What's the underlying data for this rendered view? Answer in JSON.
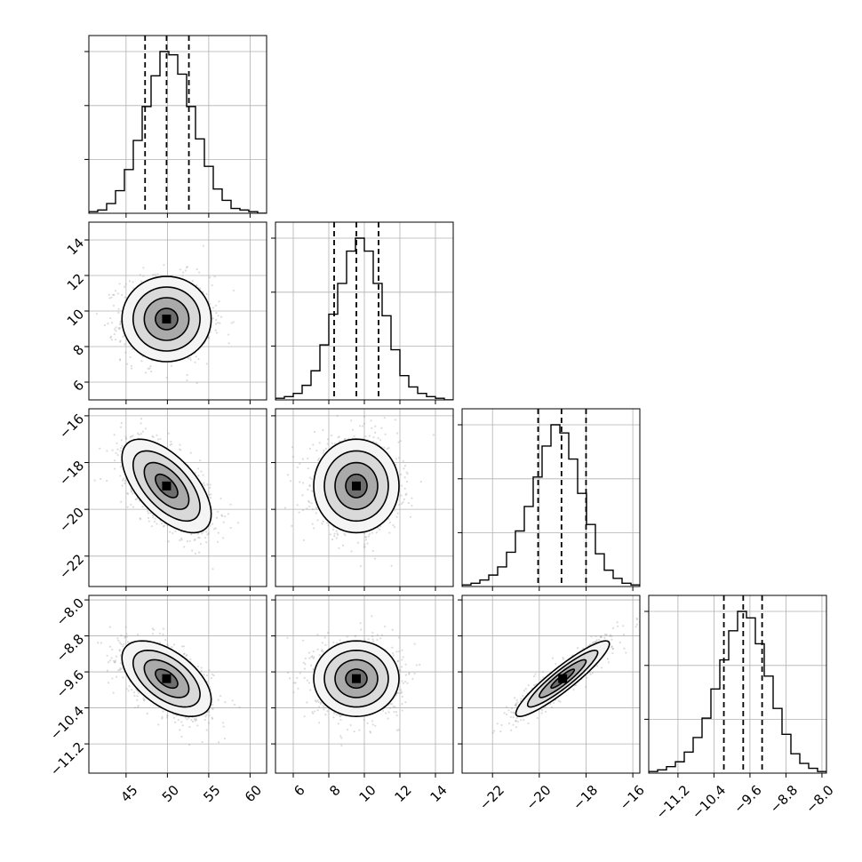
{
  "chart_data": {
    "type": "corner",
    "grid": true,
    "parameters": [
      {
        "range": [
          40.5,
          62
        ],
        "ticks": [
          45,
          50,
          55,
          60
        ],
        "tick_labels": [
          "45",
          "50",
          "55",
          "60"
        ],
        "mean": 49.9,
        "std": 2.7,
        "quantiles": [
          47.3,
          49.9,
          52.6
        ]
      },
      {
        "range": [
          5,
          15
        ],
        "ticks": [
          6,
          8,
          10,
          12,
          14
        ],
        "tick_labels": [
          "6",
          "8",
          "10",
          "12",
          "14"
        ],
        "mean": 9.55,
        "std": 1.2,
        "quantiles": [
          8.3,
          9.55,
          10.8
        ]
      },
      {
        "range": [
          -23.3,
          -15.7
        ],
        "ticks": [
          -22,
          -20,
          -18,
          -16
        ],
        "tick_labels": [
          "−22",
          "−20",
          "−18",
          "−16"
        ],
        "mean": -19.0,
        "std": 1.0,
        "quantiles": [
          -20.05,
          -19.05,
          -18.0
        ]
      },
      {
        "range": [
          -11.85,
          -7.9
        ],
        "ticks": [
          -11.2,
          -10.4,
          -9.6,
          -8.8,
          -8.0
        ],
        "tick_labels": [
          "−11.2",
          "−10.4",
          "−9.6",
          "−8.8",
          "−8.0"
        ],
        "mean": -9.75,
        "std": 0.42,
        "quantiles": [
          -10.18,
          -9.75,
          -9.33
        ]
      }
    ],
    "diagonal_histograms": [
      {
        "bin_edges": [
          40.5,
          41.575,
          42.65,
          43.725,
          44.8,
          45.875,
          46.95,
          48.025,
          49.1,
          50.175,
          51.25,
          52.325,
          53.4,
          54.475,
          55.55,
          56.625,
          57.7,
          58.775,
          59.85,
          60.925,
          62
        ],
        "counts": [
          1,
          2,
          6,
          14,
          27,
          45,
          66,
          85,
          100,
          98,
          86,
          66,
          46,
          29,
          15,
          8,
          3,
          2,
          1,
          0
        ]
      },
      {
        "bin_edges": [
          5,
          5.5,
          6,
          6.5,
          7,
          7.5,
          8,
          8.5,
          9,
          9.5,
          10,
          10.5,
          11,
          11.5,
          12,
          12.5,
          13,
          13.5,
          14,
          14.5,
          15
        ],
        "counts": [
          1,
          2,
          4,
          9,
          18,
          34,
          53,
          72,
          92,
          100,
          92,
          72,
          52,
          31,
          15,
          8,
          4,
          2,
          1,
          0
        ]
      },
      {
        "bin_edges": [
          -23.3,
          -22.92,
          -22.54,
          -22.16,
          -21.78,
          -21.4,
          -21.02,
          -20.64,
          -20.26,
          -19.88,
          -19.5,
          -19.12,
          -18.74,
          -18.36,
          -17.98,
          -17.6,
          -17.22,
          -16.84,
          -16.46,
          -16.08,
          -15.7
        ],
        "counts": [
          1,
          2,
          4,
          7,
          12,
          21,
          34,
          49,
          67,
          86,
          99,
          94,
          78,
          57,
          38,
          20,
          10,
          5,
          2,
          1
        ]
      },
      {
        "bin_edges": [
          -11.85,
          -11.6525,
          -11.455,
          -11.2575,
          -11.06,
          -10.8625,
          -10.665,
          -10.4675,
          -10.27,
          -10.0725,
          -9.875,
          -9.6775,
          -9.48,
          -9.2825,
          -9.085,
          -8.8875,
          -8.69,
          -8.4925,
          -8.295,
          -8.0975,
          -7.9
        ],
        "counts": [
          1,
          2,
          4,
          7,
          13,
          22,
          34,
          52,
          70,
          88,
          100,
          96,
          80,
          60,
          40,
          24,
          12,
          6,
          3,
          1
        ]
      }
    ],
    "pair_correlations": [
      {
        "row": 1,
        "col": 0,
        "rho": 0.0
      },
      {
        "row": 2,
        "col": 0,
        "rho": -0.6
      },
      {
        "row": 2,
        "col": 1,
        "rho": 0.0
      },
      {
        "row": 3,
        "col": 0,
        "rho": -0.55
      },
      {
        "row": 3,
        "col": 1,
        "rho": 0.0
      },
      {
        "row": 3,
        "col": 2,
        "rho": 0.92
      }
    ],
    "contour_levels_sigma": [
      0.5,
      1.0,
      1.5,
      2.0
    ]
  }
}
